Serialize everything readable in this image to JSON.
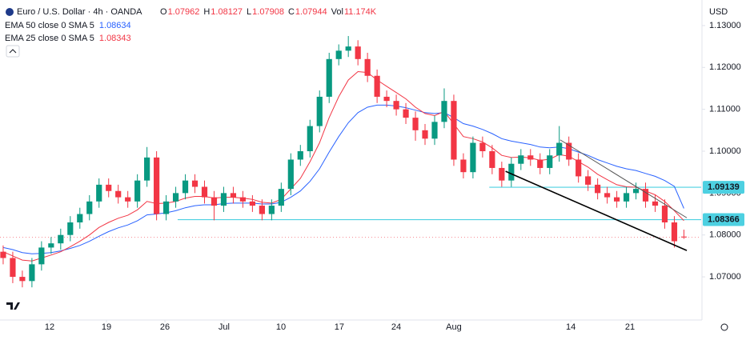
{
  "chart_data": {
    "type": "candlestick",
    "title": "Euro / U.S. Dollar · 4h · OANDA",
    "currency": "USD",
    "ohlc_labels": [
      "O",
      "H",
      "L",
      "C",
      "Vol"
    ],
    "volume_label": "11.174K",
    "up_color": "#089981",
    "down_color": "#f23645",
    "open": [
      1.076,
      1.0745,
      1.07,
      1.069,
      1.073,
      1.077,
      1.078,
      1.08,
      1.083,
      1.085,
      1.088,
      1.092,
      1.0905,
      1.089,
      1.088,
      1.093,
      1.0985,
      1.085,
      1.088,
      1.09,
      1.093,
      1.0915,
      1.089,
      1.087,
      1.09,
      1.089,
      1.088,
      1.087,
      1.085,
      1.087,
      1.091,
      1.098,
      1.1,
      1.106,
      1.113,
      1.122,
      1.124,
      1.125,
      1.122,
      1.118,
      1.113,
      1.112,
      1.11,
      1.108,
      1.105,
      1.103,
      1.107,
      1.112,
      1.098,
      1.095,
      1.102,
      1.1,
      1.096,
      1.093,
      1.097,
      1.099,
      1.098,
      1.096,
      1.099,
      1.102,
      1.098,
      1.094,
      1.092,
      1.09,
      1.089,
      1.088,
      1.09,
      1.091,
      1.088,
      1.087,
      1.083,
      1.07962
    ],
    "high": [
      1.0775,
      1.076,
      1.0715,
      1.0745,
      1.0785,
      1.0795,
      1.0815,
      1.0845,
      1.0865,
      1.0895,
      1.0935,
      1.0935,
      1.092,
      1.0905,
      1.0945,
      1.101,
      1.1,
      1.0895,
      1.0915,
      1.0945,
      1.0945,
      1.093,
      1.0905,
      1.0915,
      1.0915,
      1.0905,
      1.0895,
      1.0885,
      1.0885,
      1.0925,
      1.0995,
      1.1015,
      1.1075,
      1.1145,
      1.1235,
      1.1255,
      1.1275,
      1.1265,
      1.1235,
      1.1195,
      1.1145,
      1.1135,
      1.1115,
      1.1095,
      1.1065,
      1.1085,
      1.115,
      1.1135,
      1.0995,
      1.1035,
      1.1035,
      1.1015,
      1.0975,
      1.0985,
      1.1005,
      1.1005,
      1.0995,
      1.1005,
      1.106,
      1.1035,
      1.0995,
      1.0955,
      1.0935,
      1.0915,
      1.0905,
      1.0915,
      1.0925,
      1.0925,
      1.0895,
      1.0885,
      1.0845,
      1.08127
    ],
    "low": [
      1.073,
      1.0685,
      1.0675,
      1.0675,
      1.0715,
      1.0755,
      1.0765,
      1.0785,
      1.0815,
      1.0835,
      1.0865,
      1.089,
      1.0875,
      1.0865,
      1.0865,
      1.0915,
      1.0835,
      1.0835,
      1.0865,
      1.0885,
      1.09,
      1.0875,
      1.0835,
      1.0855,
      1.0875,
      1.0865,
      1.0855,
      1.0835,
      1.0835,
      1.0855,
      1.0895,
      1.0965,
      1.0985,
      1.1045,
      1.1115,
      1.1205,
      1.1225,
      1.1205,
      1.1165,
      1.1115,
      1.1105,
      1.1085,
      1.1065,
      1.1025,
      1.1015,
      1.1015,
      1.1055,
      1.0965,
      1.0935,
      1.0935,
      1.0985,
      1.0945,
      1.0915,
      1.0915,
      1.0955,
      1.0965,
      1.0945,
      1.0945,
      1.0975,
      1.0965,
      1.0925,
      1.0905,
      1.0885,
      1.0875,
      1.0865,
      1.0865,
      1.0885,
      1.0865,
      1.0855,
      1.0815,
      1.077,
      1.07908
    ],
    "close": [
      1.0745,
      1.07,
      1.069,
      1.073,
      1.077,
      1.078,
      1.08,
      1.083,
      1.085,
      1.088,
      1.092,
      1.0905,
      1.089,
      1.088,
      1.093,
      1.0985,
      1.085,
      1.088,
      1.09,
      1.093,
      1.0915,
      1.089,
      1.087,
      1.09,
      1.089,
      1.088,
      1.087,
      1.085,
      1.087,
      1.091,
      1.098,
      1.1,
      1.106,
      1.113,
      1.122,
      1.124,
      1.125,
      1.122,
      1.118,
      1.113,
      1.112,
      1.11,
      1.108,
      1.105,
      1.103,
      1.107,
      1.112,
      1.098,
      1.095,
      1.102,
      1.1,
      1.096,
      1.093,
      1.097,
      1.099,
      1.098,
      1.096,
      1.099,
      1.102,
      1.098,
      1.094,
      1.092,
      1.09,
      1.089,
      1.088,
      1.09,
      1.091,
      1.088,
      1.087,
      1.083,
      1.0785,
      1.07944
    ],
    "series": [
      {
        "name": "EMA 50 close 0 SMA 5",
        "color": "#2962ff",
        "values": [
          1.077,
          1.0765,
          1.0758,
          1.0755,
          1.0756,
          1.0758,
          1.0762,
          1.0768,
          1.0775,
          1.0785,
          1.0797,
          1.0808,
          1.0817,
          1.0824,
          1.0834,
          1.0848,
          1.085,
          1.0853,
          1.0858,
          1.0865,
          1.087,
          1.0872,
          1.0872,
          1.0875,
          1.0876,
          1.0876,
          1.0876,
          1.0874,
          1.0874,
          1.0878,
          1.089,
          1.0905,
          1.0928,
          1.0958,
          1.0998,
          1.1035,
          1.1068,
          1.1092,
          1.1105,
          1.111,
          1.111,
          1.1108,
          1.1104,
          1.1098,
          1.1092,
          1.109,
          1.1092,
          1.108,
          1.1066,
          1.106,
          1.1052,
          1.1042,
          1.103,
          1.1024,
          1.102,
          1.1016,
          1.101,
          1.1008,
          1.101,
          1.1006,
          1.0998,
          1.099,
          1.098,
          1.0972,
          1.0964,
          1.0958,
          1.0954,
          1.0947,
          1.094,
          1.093,
          1.0916,
          1.08634
        ]
      },
      {
        "name": "EMA 25 close 0 SMA 5",
        "color": "#f23645",
        "values": [
          1.076,
          1.075,
          1.074,
          1.0738,
          1.0745,
          1.0752,
          1.076,
          1.0772,
          1.0785,
          1.08,
          1.0818,
          1.083,
          1.084,
          1.0847,
          1.086,
          1.088,
          1.0875,
          1.0876,
          1.088,
          1.0888,
          1.0892,
          1.0892,
          1.0888,
          1.089,
          1.089,
          1.0888,
          1.0885,
          1.0878,
          1.0876,
          1.0885,
          1.091,
          1.0935,
          1.0975,
          1.102,
          1.108,
          1.113,
          1.117,
          1.119,
          1.1188,
          1.117,
          1.1155,
          1.114,
          1.1125,
          1.1105,
          1.109,
          1.1085,
          1.1095,
          1.1065,
          1.1035,
          1.103,
          1.1022,
          1.1008,
          1.099,
          1.0985,
          1.0986,
          1.0984,
          1.0978,
          1.0981,
          1.0992,
          1.0988,
          1.0975,
          1.0962,
          1.0945,
          1.0932,
          1.092,
          1.0915,
          1.0914,
          1.0905,
          1.0896,
          1.088,
          1.0858,
          1.08343
        ]
      }
    ],
    "levels": [
      {
        "value": 1.09139,
        "start": 50.7,
        "color": "#4dd0e1"
      },
      {
        "value": 1.08366,
        "start": 18.2,
        "color": "#4dd0e1"
      }
    ],
    "trend_lines": [
      {
        "x": [
          58.1,
          71.3
        ],
        "y": [
          1.1027,
          1.0841
        ],
        "color": "#555555"
      },
      {
        "x": [
          52.4,
          71.3
        ],
        "y": [
          1.0952,
          1.0763
        ],
        "color": "#000000"
      }
    ],
    "xlim": [
      -0.33,
      72.8
    ],
    "ylim": [
      1.0597,
      1.1361
    ],
    "xticks": [
      {
        "value": 4.85,
        "label": "12"
      },
      {
        "value": 10.77,
        "label": "19"
      },
      {
        "value": 16.87,
        "label": "26"
      },
      {
        "value": 23.04,
        "label": "Jul"
      },
      {
        "value": 28.97,
        "label": "10"
      },
      {
        "value": 35.06,
        "label": "17"
      },
      {
        "value": 40.99,
        "label": "24"
      },
      {
        "value": 47.0,
        "label": "Aug"
      },
      {
        "value": 59.2,
        "label": "14"
      },
      {
        "value": 65.37,
        "label": "21"
      }
    ],
    "yticks": [
      {
        "value": 1.07,
        "label": "1.07000"
      },
      {
        "value": 1.08,
        "label": "1.08000"
      },
      {
        "value": 1.09,
        "label": "1.09000"
      },
      {
        "value": 1.1,
        "label": "1.10000"
      },
      {
        "value": 1.11,
        "label": "1.11000"
      },
      {
        "value": 1.12,
        "label": "1.12000"
      },
      {
        "value": 1.13,
        "label": "1.13000"
      }
    ]
  }
}
